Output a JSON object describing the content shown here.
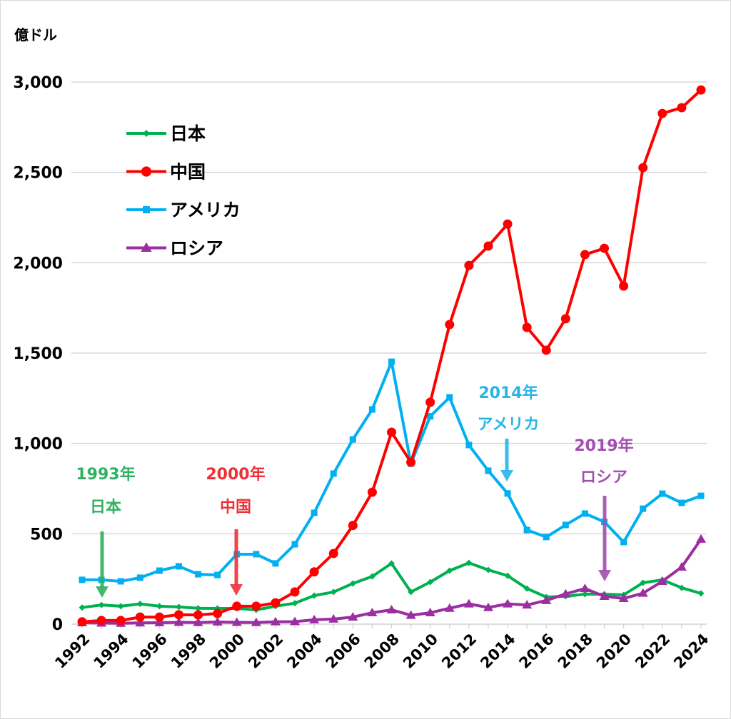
{
  "chart_data": {
    "type": "line",
    "ylabel": "億ドル",
    "ylim": [
      0,
      3000
    ],
    "yticks": [
      0,
      500,
      1000,
      1500,
      2000,
      2500,
      3000
    ],
    "ytick_labels": [
      "0",
      "500",
      "1,000",
      "1,500",
      "2,000",
      "2,500",
      "3,000"
    ],
    "xlim": [
      1992,
      2024
    ],
    "xtick_labels": [
      "1992",
      "1994",
      "1996",
      "1998",
      "2000",
      "2002",
      "2004",
      "2006",
      "2008",
      "2010",
      "2012",
      "2014",
      "2016",
      "2018",
      "2020",
      "2022",
      "2024"
    ],
    "x": [
      1992,
      1993,
      1994,
      1995,
      1996,
      1997,
      1998,
      1999,
      2000,
      2001,
      2002,
      2003,
      2004,
      2005,
      2006,
      2007,
      2008,
      2009,
      2010,
      2011,
      2012,
      2013,
      2014,
      2015,
      2016,
      2017,
      2018,
      2019,
      2020,
      2021,
      2022,
      2023,
      2024
    ],
    "grid": "horizontal",
    "legend_position": "top-left",
    "series": [
      {
        "name": "日本",
        "color": "#00b050",
        "marker": "diamond",
        "values": [
          92,
          106,
          99,
          112,
          99,
          95,
          88,
          87,
          87,
          79,
          99,
          116,
          158,
          178,
          225,
          264,
          336,
          178,
          233,
          296,
          339,
          300,
          268,
          197,
          150,
          154,
          166,
          166,
          162,
          229,
          245,
          201,
          170
        ]
      },
      {
        "name": "中国",
        "color": "#ff0000",
        "marker": "circle",
        "values": [
          13,
          20,
          20,
          39,
          39,
          52,
          51,
          59,
          99,
          99,
          118,
          178,
          289,
          391,
          546,
          730,
          1062,
          896,
          1228,
          1658,
          1985,
          2092,
          2214,
          1642,
          1516,
          1690,
          2045,
          2080,
          1871,
          2526,
          2826,
          2858,
          2956
        ]
      },
      {
        "name": "アメリカ",
        "color": "#00b0f0",
        "marker": "square",
        "values": [
          245,
          245,
          237,
          257,
          296,
          320,
          276,
          272,
          387,
          387,
          336,
          442,
          616,
          833,
          1022,
          1188,
          1452,
          888,
          1150,
          1255,
          991,
          849,
          723,
          521,
          482,
          549,
          612,
          566,
          454,
          639,
          722,
          671,
          710
        ]
      },
      {
        "name": "ロシア",
        "color": "#9b2ea0",
        "marker": "triangle",
        "values": [
          8,
          6,
          5,
          7,
          8,
          10,
          9,
          12,
          10,
          9,
          13,
          14,
          24,
          28,
          39,
          63,
          79,
          49,
          63,
          88,
          112,
          92,
          112,
          106,
          131,
          167,
          197,
          154,
          142,
          171,
          237,
          316,
          470
        ]
      }
    ],
    "annotations": [
      {
        "year_label": "1993年",
        "country": "日本",
        "x": 1993,
        "color": "#2fb25f"
      },
      {
        "year_label": "2000年",
        "country": "中国",
        "x": 2000,
        "color": "#f03038"
      },
      {
        "year_label": "2014年",
        "country": "アメリカ",
        "x": 2014,
        "color": "#28b4ea"
      },
      {
        "year_label": "2019年",
        "country": "ロシア",
        "x": 2019,
        "color": "#a24fb0"
      }
    ]
  }
}
